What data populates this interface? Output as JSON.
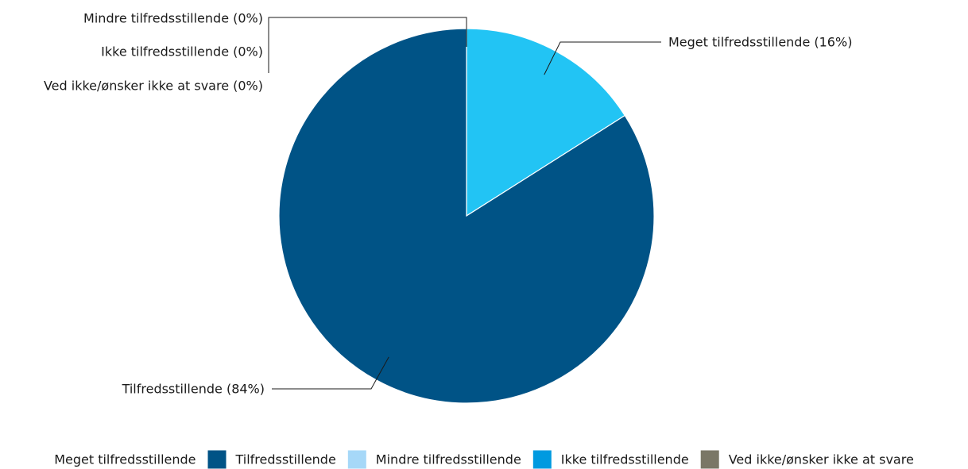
{
  "chart_data": {
    "type": "pie",
    "title": "",
    "series": [
      {
        "name": "Meget tilfredsstillende",
        "value": 16,
        "label": "Meget tilfredsstillende (16%)",
        "color": "#22c4f4",
        "legend_swatch": false
      },
      {
        "name": "Tilfredsstillende",
        "value": 84,
        "label": "Tilfredsstillende (84%)",
        "color": "#005386",
        "legend_swatch": true
      },
      {
        "name": "Mindre tilfredsstillende",
        "value": 0,
        "label": "Mindre tilfredsstillende (0%)",
        "color": "#a6d8f8",
        "legend_swatch": true
      },
      {
        "name": "Ikke tilfredsstillende",
        "value": 0,
        "label": "Ikke tilfredsstillende (0%)",
        "color": "#009ae0",
        "legend_swatch": true
      },
      {
        "name": "Ved ikke/ønsker ikke at svare",
        "value": 0,
        "label": "Ved ikke/ønsker ikke at svare (0%)",
        "color": "#7a7766",
        "legend_swatch": true
      }
    ],
    "start_angle": "12 o'clock",
    "direction": "clockwise",
    "slice_border_color": "#ffffff",
    "legend_position": "bottom"
  }
}
